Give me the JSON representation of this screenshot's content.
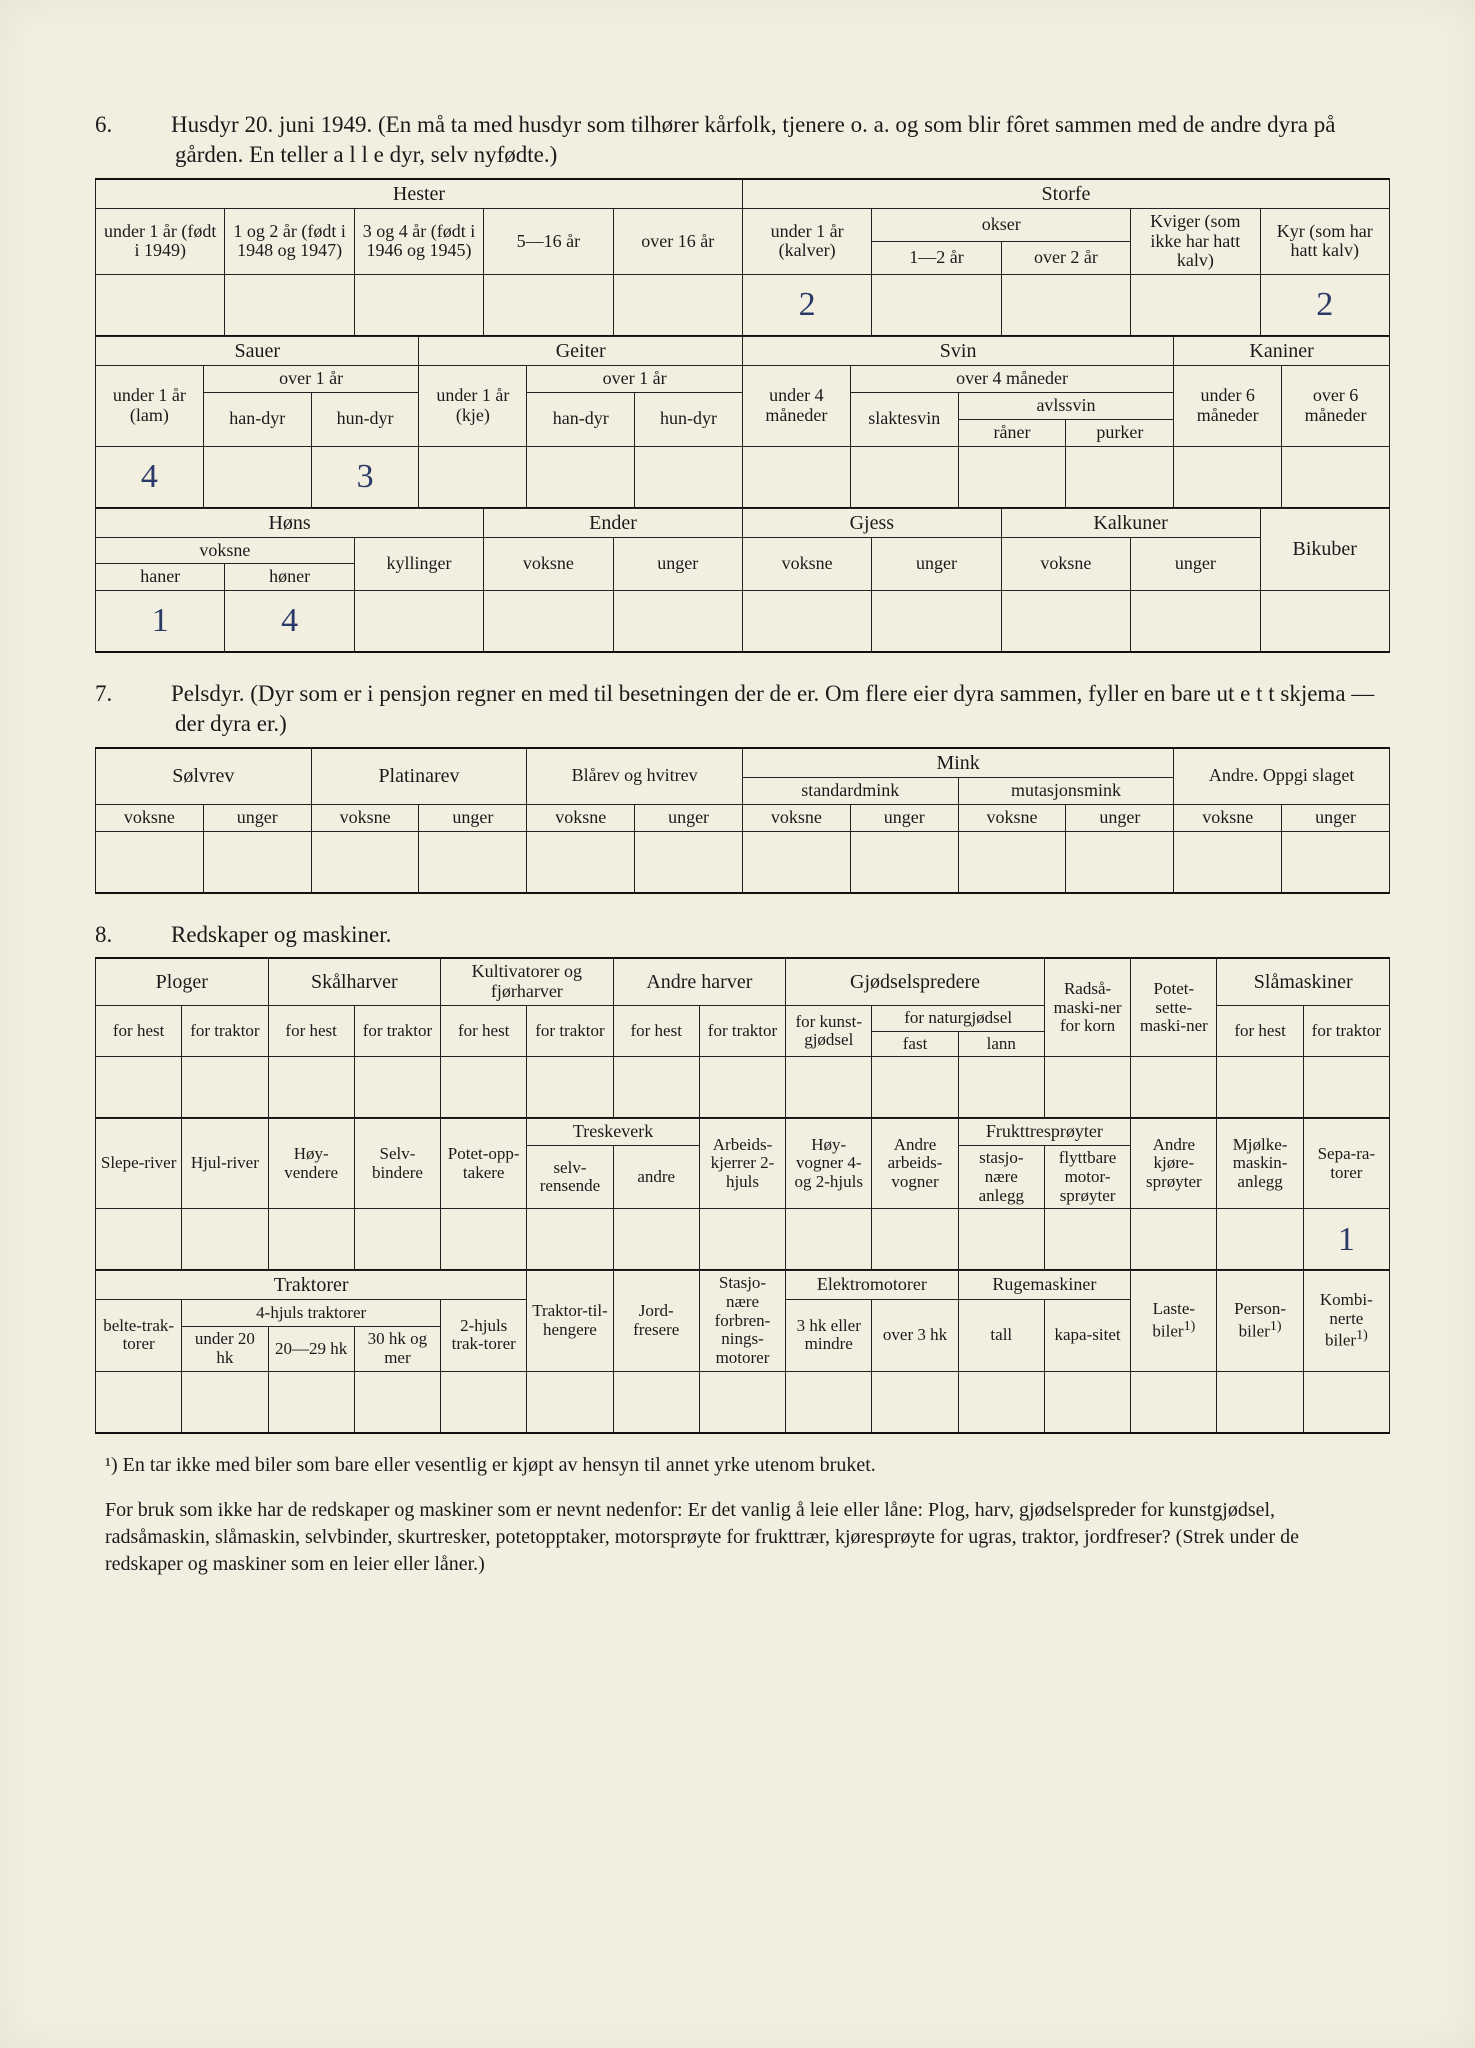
{
  "page_background": "#f2efe1",
  "text_color": "#1a1a1a",
  "handwriting_color": "#2a3a66",
  "section6": {
    "number": "6.",
    "title": "Husdyr 20. juni 1949.  (En må ta med husdyr som tilhører kårfolk, tjenere o. a. og som blir fôret sammen med de andre dyra på gården.   En teller a l l e dyr, selv nyfødte.)",
    "block_a": {
      "hester_header": "Hester",
      "storfe_header": "Storfe",
      "cols": {
        "c1": "under 1 år (født i 1949)",
        "c2": "1 og 2 år (født i 1948 og 1947)",
        "c3": "3 og 4 år (født i 1946 og 1945)",
        "c4": "5—16 år",
        "c5": "over 16 år",
        "c6": "under 1 år (kalver)",
        "c7": "okser",
        "c7a": "1—2 år",
        "c7b": "over 2 år",
        "c8": "Kviger (som ikke har hatt kalv)",
        "c9": "Kyr (som har hatt kalv)"
      },
      "values": {
        "c6": "2",
        "c9": "2"
      }
    },
    "block_b": {
      "headers": {
        "sauer": "Sauer",
        "geiter": "Geiter",
        "svin": "Svin",
        "kaniner": "Kaniner"
      },
      "sauer": {
        "u1": "under 1 år (lam)",
        "o1": "over 1 år",
        "han": "han-dyr",
        "hun": "hun-dyr"
      },
      "geiter": {
        "u1": "under 1 år (kje)",
        "o1": "over 1 år",
        "han": "han-dyr",
        "hun": "hun-dyr"
      },
      "svin": {
        "u4": "under 4 måneder",
        "o4": "over 4 måneder",
        "slakt": "slaktesvin",
        "avl": "avlssvin",
        "raner": "råner",
        "purker": "purker"
      },
      "kaniner": {
        "u6": "under 6 måneder",
        "o6": "over 6 måneder"
      },
      "values": {
        "sauer_u1": "4",
        "sauer_hun": "3"
      }
    },
    "block_c": {
      "headers": {
        "hons": "Høns",
        "ender": "Ender",
        "gjess": "Gjess",
        "kalkuner": "Kalkuner",
        "bikuber": "Bikuber"
      },
      "hons": {
        "voksne": "voksne",
        "haner": "haner",
        "honer": "høner",
        "kyllinger": "kyllinger"
      },
      "ev": "voksne",
      "eu": "unger",
      "values": {
        "haner": "1",
        "honer": "4"
      }
    }
  },
  "section7": {
    "number": "7.",
    "title": "Pelsdyr.   (Dyr som er i pensjon regner en med til besetningen der de er.   Om flere eier dyra sammen, fyller en bare ut e t t skjema  —  der dyra er.)",
    "cols": {
      "solvrev": "Sølvrev",
      "platinarev": "Platinarev",
      "blarev": "Blårev og hvitrev",
      "mink": "Mink",
      "standard": "standardmink",
      "mutasjon": "mutasjonsmink",
      "andre": "Andre.  Oppgi slaget",
      "voksne": "voksne",
      "unger": "unger"
    }
  },
  "section8": {
    "number": "8.",
    "title": "Redskaper og maskiner.",
    "block_a": {
      "ploger": "Ploger",
      "skalharver": "Skålharver",
      "kultivatorer": "Kultivatorer og fjørharver",
      "andreharver": "Andre harver",
      "gjodsel": "Gjødselspredere",
      "radsa": "Radså-maski-ner for korn",
      "potet": "Potet-sette-maski-ner",
      "sla": "Slåmaskiner",
      "forhest": "for hest",
      "fortraktor": "for traktor",
      "kunst": "for kunst-gjødsel",
      "natur": "for naturgjødsel",
      "fast": "fast",
      "lann": "lann"
    },
    "block_b": {
      "slepe": "Slepe-river",
      "hjul": "Hjul-river",
      "hoy": "Høy-vendere",
      "selv": "Selv-bindere",
      "potetopp": "Potet-opp-takere",
      "treske": "Treskeverk",
      "selvrens": "selv-rensende",
      "andre": "andre",
      "arbeids": "Arbeids-kjerrer 2-hjuls",
      "hoyvogn": "Høy-vogner 4- og 2-hjuls",
      "andrevogn": "Andre arbeids-vogner",
      "frukt": "Frukttresprøyter",
      "stasjo": "stasjo-nære anlegg",
      "flytt": "flyttbare motor-sprøyter",
      "andrekjore": "Andre kjøre-sprøyter",
      "mjolke": "Mjølke-maskin-anlegg",
      "sepa": "Sepa-ra-torer",
      "values": {
        "sepa": "1"
      }
    },
    "block_c": {
      "traktorer": "Traktorer",
      "belte": "belte-trak-torer",
      "firehjuls": "4-hjuls traktorer",
      "u20": "under 20 hk",
      "m20": "20—29 hk",
      "o30": "30 hk og mer",
      "tohjuls": "2-hjuls trak-torer",
      "tilhenger": "Traktor-til-hengere",
      "jord": "Jord-fresere",
      "forbren": "Stasjo-nære forbren-nings-motorer",
      "elektro": "Elektromotorer",
      "hk3": "3 hk eller mindre",
      "o3": "over 3 hk",
      "ruge": "Rugemaskiner",
      "tall": "tall",
      "kapa": "kapa-sitet",
      "laste": "Laste-biler",
      "person": "Person-biler",
      "kombi": "Kombi-nerte biler",
      "sup": "1)"
    }
  },
  "footnotes": {
    "n1": "¹) En tar ikke med biler som bare eller vesentlig er kjøpt av hensyn til annet yrke utenom bruket.",
    "n2": "For bruk som ikke har de redskaper og maskiner som er nevnt nedenfor:  Er det vanlig å leie eller låne:  Plog, harv, gjødselspreder for kunstgjødsel, radsåmaskin, slåmaskin, selvbinder, skurtresker, potetopptaker, motorsprøyte for frukttrær, kjøresprøyte for ugras, traktor, jordfreser? (Strek under de redskaper og maskiner som en leier eller låner.)"
  }
}
